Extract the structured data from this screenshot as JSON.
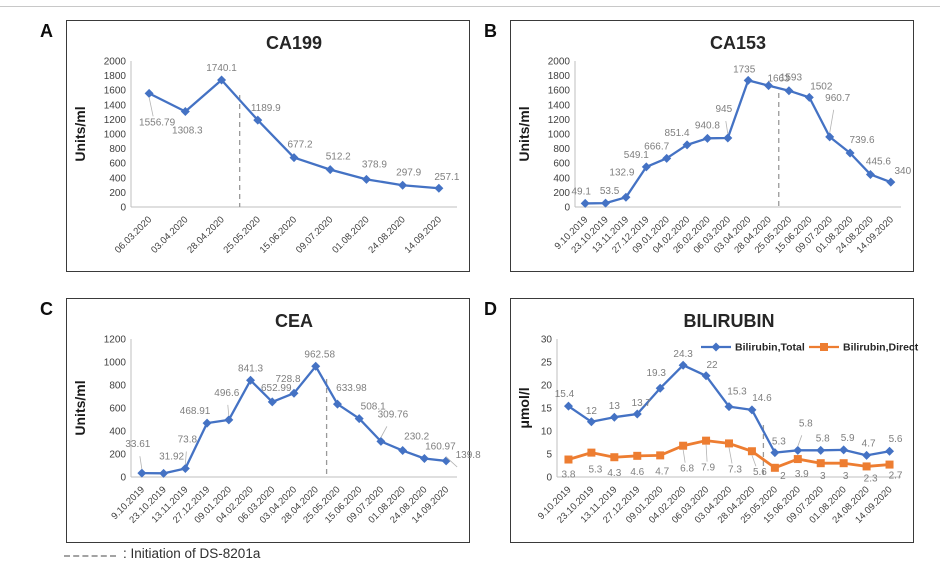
{
  "figure": {
    "footer": {
      "vline_label": ": Initiation of DS-8201a"
    },
    "colors": {
      "series_blue": "#4472C4",
      "series_orange": "#ED7D31",
      "data_label": "#7F7F7F",
      "axis_text": "#404040",
      "axis_line": "#BFBFBF",
      "vline": "#999999",
      "title": "#262626",
      "border": "#3a3a3a"
    }
  },
  "chart_data": [
    {
      "panel": "A",
      "type": "line",
      "title": "CA199",
      "ylabel": "Units/ml",
      "ylim": [
        0,
        2000
      ],
      "ystep": 200,
      "grid": false,
      "vline_after_index": 2,
      "categories": [
        "06.03.2020",
        "03.04.2020",
        "28.04.2020",
        "25.05.2020",
        "15.06.2020",
        "09.07.2020",
        "01.08.2020",
        "24.08.2020",
        "14.09.2020"
      ],
      "series": [
        {
          "name": "CA199",
          "color": "#4472C4",
          "marker": "diamond",
          "values": [
            1556.79,
            1308.3,
            1740.1,
            1189.9,
            677.2,
            512.2,
            378.9,
            297.9,
            257.1
          ],
          "labels": [
            "1556.79",
            "1308.3",
            "1740.1",
            "1189.9",
            "677.2",
            "512.2",
            "378.9",
            "297.9",
            "257.1"
          ],
          "label_offsets": [
            [
              8,
              32
            ],
            [
              2,
              22
            ],
            [
              0,
              -9
            ],
            [
              8,
              -9
            ],
            [
              6,
              -10
            ],
            [
              8,
              -10
            ],
            [
              8,
              -12
            ],
            [
              6,
              -10
            ],
            [
              8,
              -8
            ]
          ]
        }
      ]
    },
    {
      "panel": "B",
      "type": "line",
      "title": "CA153",
      "ylabel": "Units/ml",
      "ylim": [
        0,
        2000
      ],
      "ystep": 200,
      "grid": false,
      "vline_after_index": 9,
      "categories": [
        "9.10.2019",
        "23.10.2019",
        "13.11.2019",
        "27.12.2019",
        "09.01.2020",
        "04.02.2020",
        "26.02.2020",
        "06.03.2020",
        "03.04.2020",
        "28.04.2020",
        "25.05.2020",
        "15.06.2020",
        "09.07.2020",
        "01.08.2020",
        "24.08.2020",
        "14.09.2020"
      ],
      "series": [
        {
          "name": "CA153",
          "color": "#4472C4",
          "marker": "diamond",
          "values": [
            49.1,
            53.5,
            132.9,
            549.1,
            666.7,
            851.4,
            940.8,
            945,
            1735,
            1663,
            1593,
            1502,
            960.7,
            739.6,
            445.6,
            340
          ],
          "labels": [
            "49.1",
            "53.5",
            "132.9",
            "549.1",
            "666.7",
            "851.4",
            "940.8",
            "945",
            "1735",
            "1663",
            "1593",
            "1502",
            "960.7",
            "739.6",
            "445.6",
            "340"
          ],
          "label_offsets": [
            [
              -4,
              -9
            ],
            [
              4,
              -9
            ],
            [
              -4,
              -22
            ],
            [
              -10,
              -9
            ],
            [
              -10,
              -9
            ],
            [
              -10,
              -9
            ],
            [
              0,
              -10
            ],
            [
              -4,
              -26
            ],
            [
              -4,
              -8
            ],
            [
              10,
              -4
            ],
            [
              2,
              -10
            ],
            [
              12,
              -8
            ],
            [
              8,
              -36
            ],
            [
              12,
              -10
            ],
            [
              8,
              -10
            ],
            [
              12,
              -8
            ]
          ]
        }
      ]
    },
    {
      "panel": "C",
      "type": "line",
      "title": "CEA",
      "ylabel": "Units/ml",
      "ylim": [
        0,
        1200
      ],
      "ystep": 200,
      "grid": false,
      "vline_after_index": 8,
      "categories": [
        "9.10.2019",
        "23.10.2019",
        "13.11.2019",
        "27.12.2019",
        "09.01.2020",
        "04.02.2020",
        "06.03.2020",
        "03.04.2020",
        "28.04.2020",
        "25.05.2020",
        "15.06.2020",
        "09.07.2020",
        "01.08.2020",
        "24.08.2020",
        "14.09.2020"
      ],
      "series": [
        {
          "name": "CEA",
          "color": "#4472C4",
          "marker": "diamond",
          "values": [
            33.61,
            31.92,
            73.8,
            468.91,
            496.6,
            841.3,
            652.99,
            728.8,
            962.58,
            633.98,
            508.1,
            309.76,
            230.2,
            160.97,
            139.8
          ],
          "labels": [
            "33.61",
            "31.92",
            "73.8",
            "468.91",
            "496.6",
            "841.3",
            "652.99",
            "728.8",
            "962.58",
            "633.98",
            "508.1",
            "309.76",
            "230.2",
            "160.97",
            "139.8"
          ],
          "label_offsets": [
            [
              -4,
              -26
            ],
            [
              8,
              -14
            ],
            [
              2,
              -26
            ],
            [
              -12,
              -9
            ],
            [
              -2,
              -24
            ],
            [
              0,
              -9
            ],
            [
              4,
              -11
            ],
            [
              -6,
              -11
            ],
            [
              4,
              -9
            ],
            [
              14,
              -13
            ],
            [
              14,
              -9
            ],
            [
              12,
              -24
            ],
            [
              14,
              -11
            ],
            [
              16,
              -9
            ],
            [
              22,
              -3
            ]
          ]
        }
      ]
    },
    {
      "panel": "D",
      "type": "line",
      "title": "BILIRUBIN",
      "ylabel": "μmol/l",
      "ylim": [
        0,
        30
      ],
      "ystep": 5,
      "grid": false,
      "legend": "top-inside",
      "vline_after_index": 8,
      "categories": [
        "9.10.2019",
        "23.10.2019",
        "13.11.2019",
        "27.12.2019",
        "09.01.2020",
        "04.02.2020",
        "06.03.2020",
        "03.04.2020",
        "28.04.2020",
        "25.05.2020",
        "15.06.2020",
        "09.07.2020",
        "01.08.2020",
        "24.08.2020",
        "14.09.2020"
      ],
      "series": [
        {
          "name": "Bilirubin,Total",
          "color": "#4472C4",
          "marker": "diamond",
          "values": [
            15.4,
            12,
            13,
            13.7,
            19.3,
            24.3,
            22,
            15.3,
            14.6,
            5.3,
            5.8,
            5.8,
            5.9,
            4.7,
            5.6
          ],
          "labels": [
            "15.4",
            "12",
            "13",
            "13.7",
            "19.3",
            "24.3",
            "22",
            "15.3",
            "14.6",
            "5.3",
            "5.8",
            "5.8",
            "5.9",
            "4.7",
            "5.6"
          ],
          "label_offsets": [
            [
              -4,
              -9
            ],
            [
              0,
              -8
            ],
            [
              0,
              -8
            ],
            [
              4,
              -8
            ],
            [
              -4,
              -12
            ],
            [
              0,
              -8
            ],
            [
              6,
              -8
            ],
            [
              8,
              -12
            ],
            [
              10,
              -9
            ],
            [
              4,
              -8
            ],
            [
              8,
              -24
            ],
            [
              2,
              -9
            ],
            [
              4,
              -9
            ],
            [
              2,
              -9
            ],
            [
              6,
              -9
            ]
          ]
        },
        {
          "name": "Bilirubin,Direct",
          "color": "#ED7D31",
          "marker": "square",
          "values": [
            3.8,
            5.3,
            4.3,
            4.6,
            4.7,
            6.8,
            7.9,
            7.3,
            5.6,
            2,
            3.9,
            3,
            3,
            2.3,
            2.7
          ],
          "labels": [
            "3.8",
            "5.3",
            "4.3",
            "4.6",
            "4.7",
            "6.8",
            "7.9",
            "7.3",
            "5.6",
            "2",
            "3.9",
            "3",
            "3",
            "2.3",
            "2.7"
          ],
          "label_offsets": [
            [
              0,
              18
            ],
            [
              4,
              20
            ],
            [
              0,
              19
            ],
            [
              0,
              19
            ],
            [
              2,
              19
            ],
            [
              4,
              26
            ],
            [
              2,
              30
            ],
            [
              6,
              29
            ],
            [
              8,
              24
            ],
            [
              8,
              11
            ],
            [
              4,
              18
            ],
            [
              2,
              16
            ],
            [
              2,
              16
            ],
            [
              4,
              15
            ],
            [
              6,
              14
            ]
          ]
        }
      ]
    }
  ]
}
